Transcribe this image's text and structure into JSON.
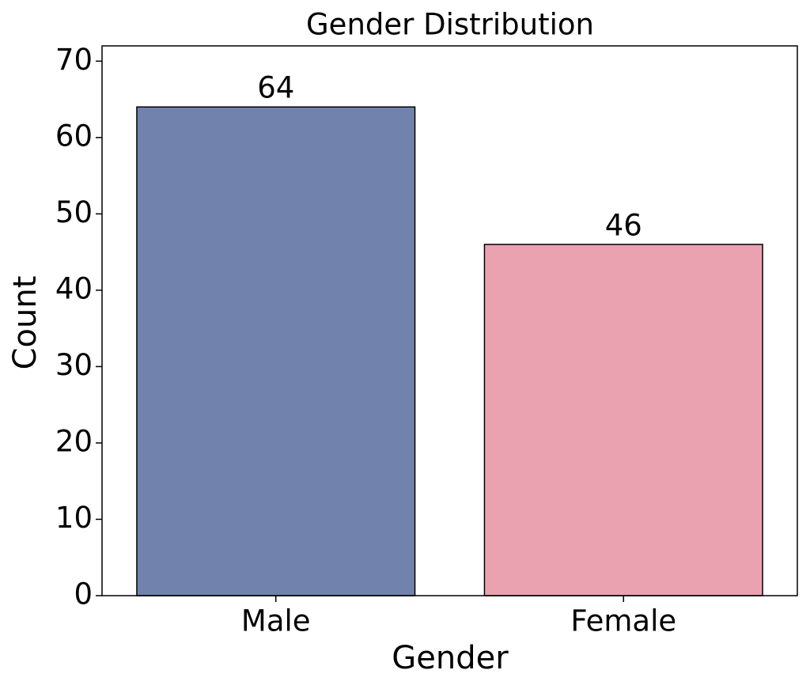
{
  "chart_data": {
    "type": "bar",
    "title": "Gender Distribution",
    "x_label": "Gender",
    "y_label": "Count",
    "categories": [
      "Male",
      "Female"
    ],
    "values": [
      64,
      46
    ],
    "colors": [
      "#7182ac",
      "#eaa2b1"
    ],
    "ylim": [
      0,
      72
    ],
    "yticks": [
      0,
      10,
      20,
      30,
      40,
      50,
      60,
      70
    ]
  }
}
